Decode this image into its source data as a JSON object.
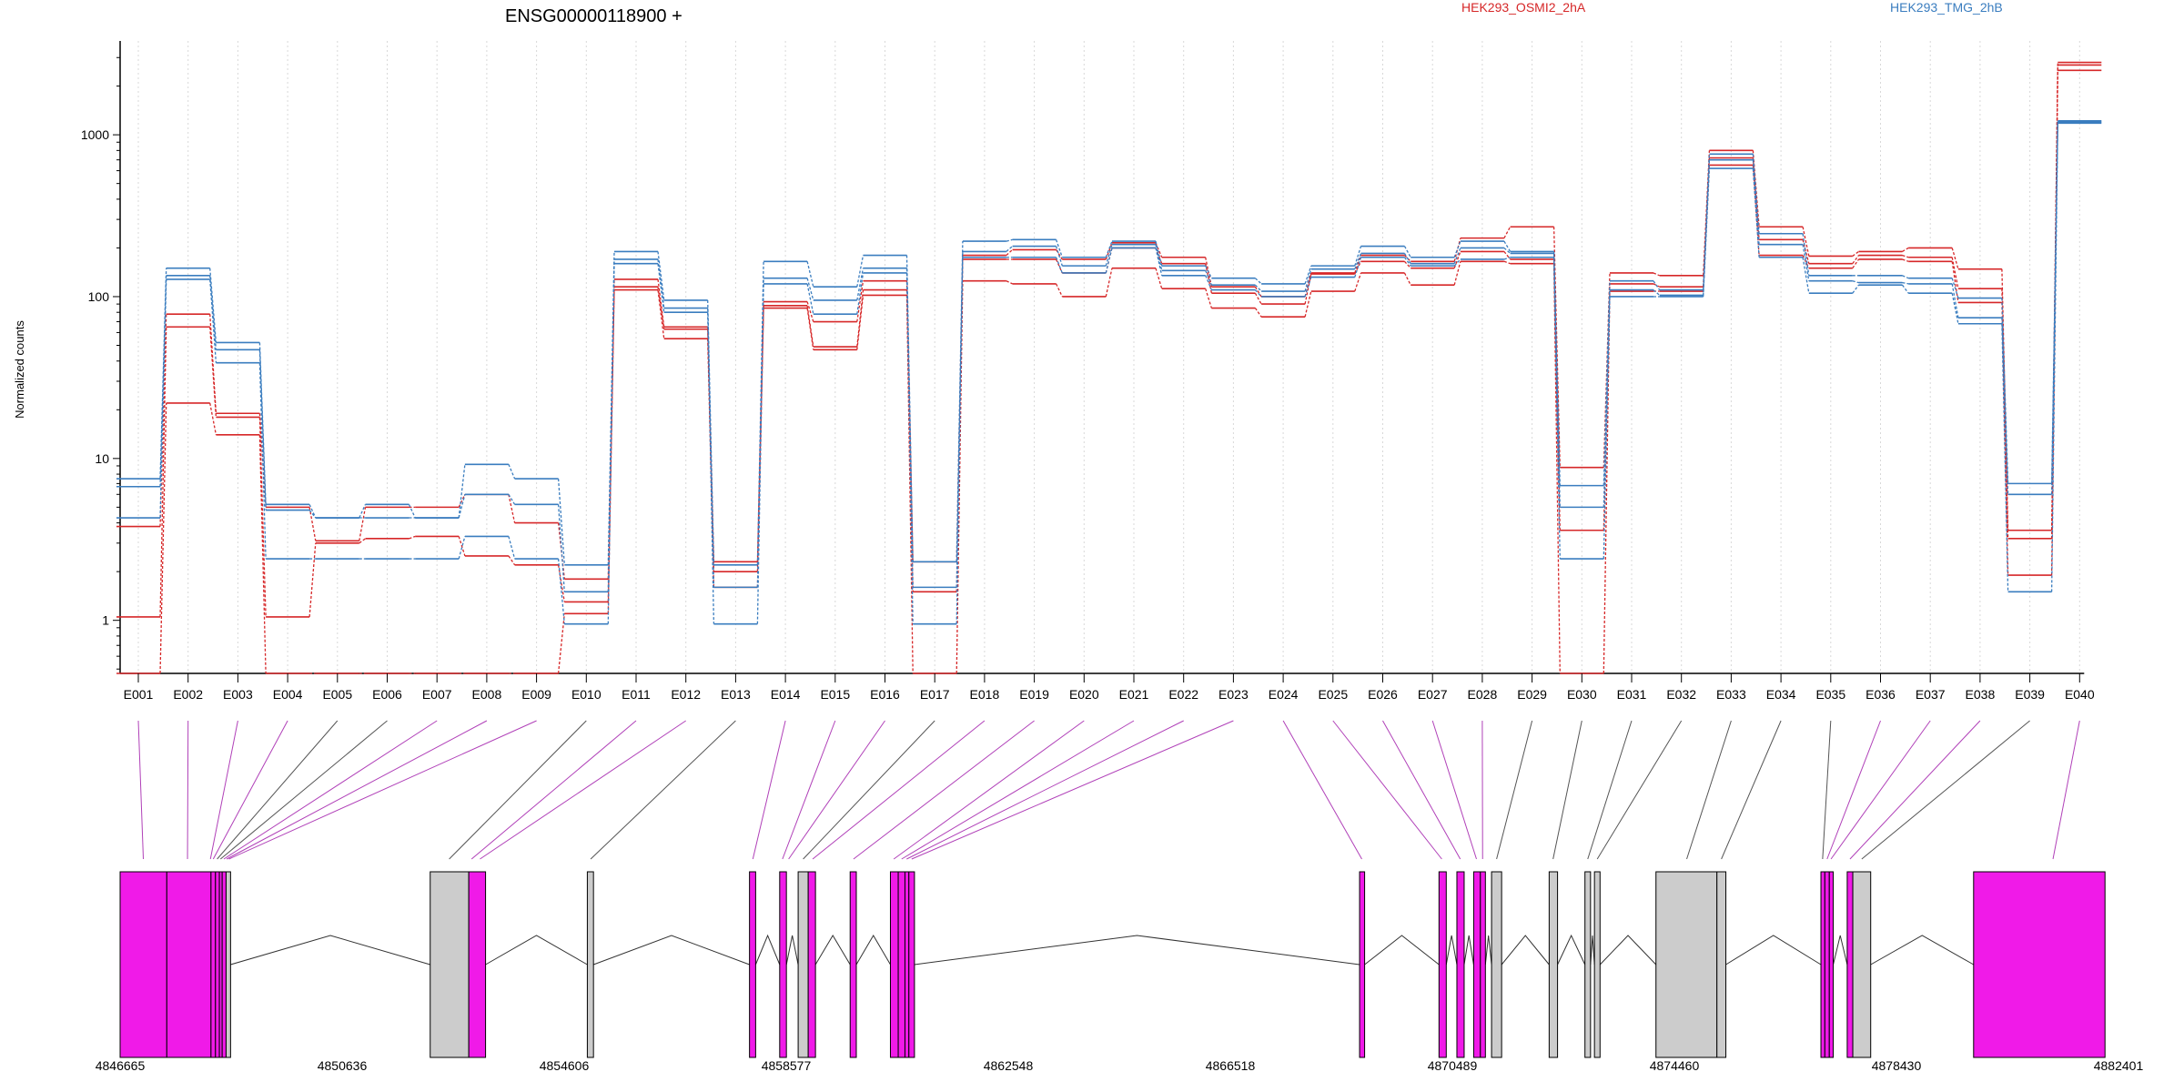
{
  "chart_data": {
    "type": "line",
    "title": "ENSG00000118900 +",
    "ylabel": "Normalized counts",
    "yscale": "log",
    "ylim": [
      0.47,
      3800
    ],
    "y_tick_values": [
      1,
      10,
      100,
      1000
    ],
    "y_tick_labels": [
      "1",
      "10",
      "100",
      "1000"
    ],
    "legend": [
      "HEK293_OSMI2_2hA",
      "HEK293_TMG_2hB"
    ],
    "legend_placement": "top",
    "grid": "vertical dotted",
    "categories": [
      "E001",
      "E002",
      "E003",
      "E004",
      "E005",
      "E006",
      "E007",
      "E008",
      "E009",
      "E010",
      "E011",
      "E012",
      "E013",
      "E014",
      "E015",
      "E016",
      "E017",
      "E018",
      "E019",
      "E020",
      "E021",
      "E022",
      "E023",
      "E024",
      "E025",
      "E026",
      "E027",
      "E028",
      "E029",
      "E030",
      "E031",
      "E032",
      "E033",
      "E034",
      "E035",
      "E036",
      "E037",
      "E038",
      "E039",
      "E040"
    ],
    "series": [
      {
        "name": "HEK293_OSMI2_2hA",
        "color": "#d62728",
        "values": [
          0.47,
          22,
          14,
          0.47,
          0.47,
          0.47,
          0.47,
          0.47,
          0.47,
          1.1,
          110,
          55,
          1.6,
          85,
          47,
          102,
          0.47,
          125,
          120,
          100,
          150,
          112,
          85,
          75,
          108,
          140,
          118,
          165,
          160,
          0.47,
          108,
          108,
          650,
          180,
          150,
          170,
          165,
          92,
          1.9,
          2500
        ]
      },
      {
        "name": "HEK293_OSMI2_2hA",
        "color": "#d62728",
        "values": [
          1.05,
          65,
          18,
          1.05,
          3.0,
          3.2,
          3.3,
          2.5,
          2.2,
          1.3,
          115,
          63,
          2.0,
          88,
          49,
          110,
          1.5,
          170,
          170,
          140,
          200,
          160,
          105,
          90,
          138,
          165,
          150,
          190,
          170,
          3.6,
          120,
          115,
          720,
          225,
          160,
          180,
          175,
          112,
          3.2,
          2700
        ]
      },
      {
        "name": "HEK293_OSMI2_2hA",
        "color": "#d62728",
        "values": [
          3.8,
          78,
          19,
          5.0,
          3.1,
          5.0,
          5.0,
          6.0,
          4.0,
          1.8,
          128,
          65,
          2.3,
          93,
          70,
          125,
          2.3,
          180,
          195,
          170,
          215,
          175,
          115,
          100,
          140,
          180,
          165,
          230,
          270,
          8.8,
          140,
          135,
          800,
          270,
          178,
          190,
          200,
          148,
          3.6,
          2800
        ]
      },
      {
        "name": "HEK293_TMG_2hB",
        "color": "#3a7dbf",
        "values": [
          7.5,
          150,
          52,
          5.2,
          4.3,
          5.2,
          4.3,
          9.2,
          7.5,
          2.2,
          190,
          95,
          2.2,
          165,
          115,
          180,
          2.3,
          220,
          225,
          175,
          220,
          155,
          130,
          120,
          155,
          205,
          175,
          220,
          190,
          6.8,
          125,
          110,
          760,
          245,
          135,
          135,
          130,
          98,
          7.0,
          1220
        ]
      },
      {
        "name": "HEK293_TMG_2hB",
        "color": "#3a7dbf",
        "values": [
          6.7,
          135,
          47,
          4.8,
          4.3,
          4.3,
          4.3,
          6.0,
          5.2,
          1.5,
          170,
          85,
          1.6,
          130,
          95,
          150,
          1.6,
          190,
          205,
          155,
          210,
          145,
          118,
          108,
          148,
          185,
          160,
          200,
          185,
          5.0,
          110,
          102,
          700,
          210,
          125,
          122,
          120,
          74,
          6.0,
          1200
        ]
      },
      {
        "name": "HEK293_TMG_2hB",
        "color": "#3a7dbf",
        "values": [
          4.3,
          128,
          39,
          2.4,
          2.4,
          2.4,
          2.4,
          3.3,
          2.4,
          0.95,
          160,
          80,
          0.95,
          120,
          78,
          140,
          0.95,
          175,
          175,
          140,
          200,
          135,
          110,
          100,
          132,
          175,
          155,
          170,
          175,
          2.4,
          100,
          100,
          620,
          175,
          105,
          118,
          105,
          68,
          1.5,
          1180
        ]
      }
    ],
    "gene_model": {
      "coordinate_ticks": [
        "4846665",
        "4850636",
        "4854606",
        "4858577",
        "4862548",
        "4866518",
        "4870489",
        "4874460",
        "4878430",
        "4882401"
      ],
      "coord_min": 4846665,
      "coord_max": 4882401,
      "highlight_color": "#f01ae8",
      "gray_color": "#cccccc",
      "blocks": [
        {
          "start": 4846665,
          "end": 4847500,
          "kind": "highlight"
        },
        {
          "start": 4847500,
          "end": 4848290,
          "kind": "highlight"
        },
        {
          "start": 4848290,
          "end": 4848370,
          "kind": "highlight"
        },
        {
          "start": 4848370,
          "end": 4848440,
          "kind": "highlight"
        },
        {
          "start": 4848440,
          "end": 4848490,
          "kind": "highlight"
        },
        {
          "start": 4848490,
          "end": 4848560,
          "kind": "highlight"
        },
        {
          "start": 4848560,
          "end": 4848640,
          "kind": "gray"
        },
        {
          "start": 4852210,
          "end": 4852900,
          "kind": "gray"
        },
        {
          "start": 4852900,
          "end": 4853200,
          "kind": "highlight"
        },
        {
          "start": 4855020,
          "end": 4855130,
          "kind": "gray"
        },
        {
          "start": 4857920,
          "end": 4858030,
          "kind": "highlight"
        },
        {
          "start": 4858460,
          "end": 4858580,
          "kind": "highlight"
        },
        {
          "start": 4858790,
          "end": 4858970,
          "kind": "gray"
        },
        {
          "start": 4858970,
          "end": 4859100,
          "kind": "highlight"
        },
        {
          "start": 4859720,
          "end": 4859830,
          "kind": "highlight"
        },
        {
          "start": 4860440,
          "end": 4860580,
          "kind": "highlight"
        },
        {
          "start": 4860580,
          "end": 4860700,
          "kind": "highlight"
        },
        {
          "start": 4860700,
          "end": 4860770,
          "kind": "highlight"
        },
        {
          "start": 4860770,
          "end": 4860870,
          "kind": "highlight"
        },
        {
          "start": 4868830,
          "end": 4868920,
          "kind": "highlight"
        },
        {
          "start": 4870250,
          "end": 4870380,
          "kind": "highlight"
        },
        {
          "start": 4870570,
          "end": 4870700,
          "kind": "highlight"
        },
        {
          "start": 4870870,
          "end": 4870990,
          "kind": "highlight"
        },
        {
          "start": 4870990,
          "end": 4871080,
          "kind": "highlight"
        },
        {
          "start": 4871190,
          "end": 4871370,
          "kind": "gray"
        },
        {
          "start": 4872220,
          "end": 4872370,
          "kind": "gray"
        },
        {
          "start": 4872860,
          "end": 4872960,
          "kind": "gray"
        },
        {
          "start": 4873030,
          "end": 4873130,
          "kind": "gray"
        },
        {
          "start": 4874130,
          "end": 4875220,
          "kind": "gray"
        },
        {
          "start": 4875220,
          "end": 4875380,
          "kind": "gray"
        },
        {
          "start": 4877080,
          "end": 4877150,
          "kind": "highlight"
        },
        {
          "start": 4877150,
          "end": 4877230,
          "kind": "highlight"
        },
        {
          "start": 4877230,
          "end": 4877300,
          "kind": "highlight"
        },
        {
          "start": 4877550,
          "end": 4877650,
          "kind": "highlight"
        },
        {
          "start": 4877650,
          "end": 4877970,
          "kind": "gray"
        },
        {
          "start": 4879810,
          "end": 4882160,
          "kind": "highlight"
        }
      ],
      "exon_links": [
        {
          "exon": "E001",
          "pos": 4847080,
          "kind": "highlight"
        },
        {
          "exon": "E002",
          "pos": 4847870,
          "kind": "highlight"
        },
        {
          "exon": "E003",
          "pos": 4848280,
          "kind": "highlight"
        },
        {
          "exon": "E004",
          "pos": 4848330,
          "kind": "highlight"
        },
        {
          "exon": "E005",
          "pos": 4848400,
          "kind": "gray"
        },
        {
          "exon": "E006",
          "pos": 4848460,
          "kind": "gray"
        },
        {
          "exon": "E007",
          "pos": 4848520,
          "kind": "highlight"
        },
        {
          "exon": "E008",
          "pos": 4848570,
          "kind": "highlight"
        },
        {
          "exon": "E009",
          "pos": 4848610,
          "kind": "highlight"
        },
        {
          "exon": "E010",
          "pos": 4852550,
          "kind": "gray"
        },
        {
          "exon": "E011",
          "pos": 4852950,
          "kind": "highlight"
        },
        {
          "exon": "E012",
          "pos": 4853100,
          "kind": "highlight"
        },
        {
          "exon": "E013",
          "pos": 4855080,
          "kind": "gray"
        },
        {
          "exon": "E014",
          "pos": 4857980,
          "kind": "highlight"
        },
        {
          "exon": "E015",
          "pos": 4858510,
          "kind": "highlight"
        },
        {
          "exon": "E016",
          "pos": 4858620,
          "kind": "highlight"
        },
        {
          "exon": "E017",
          "pos": 4858880,
          "kind": "gray"
        },
        {
          "exon": "E018",
          "pos": 4859050,
          "kind": "highlight"
        },
        {
          "exon": "E019",
          "pos": 4859780,
          "kind": "highlight"
        },
        {
          "exon": "E020",
          "pos": 4860500,
          "kind": "highlight"
        },
        {
          "exon": "E021",
          "pos": 4860640,
          "kind": "highlight"
        },
        {
          "exon": "E022",
          "pos": 4860730,
          "kind": "highlight"
        },
        {
          "exon": "E023",
          "pos": 4860820,
          "kind": "highlight"
        },
        {
          "exon": "E024",
          "pos": 4868870,
          "kind": "highlight"
        },
        {
          "exon": "E025",
          "pos": 4870300,
          "kind": "highlight"
        },
        {
          "exon": "E026",
          "pos": 4870630,
          "kind": "highlight"
        },
        {
          "exon": "E027",
          "pos": 4870920,
          "kind": "highlight"
        },
        {
          "exon": "E028",
          "pos": 4871030,
          "kind": "highlight"
        },
        {
          "exon": "E029",
          "pos": 4871280,
          "kind": "gray"
        },
        {
          "exon": "E030",
          "pos": 4872290,
          "kind": "gray"
        },
        {
          "exon": "E031",
          "pos": 4872910,
          "kind": "gray"
        },
        {
          "exon": "E032",
          "pos": 4873080,
          "kind": "gray"
        },
        {
          "exon": "E033",
          "pos": 4874680,
          "kind": "gray"
        },
        {
          "exon": "E034",
          "pos": 4875300,
          "kind": "gray"
        },
        {
          "exon": "E035",
          "pos": 4877110,
          "kind": "gray"
        },
        {
          "exon": "E036",
          "pos": 4877190,
          "kind": "highlight"
        },
        {
          "exon": "E037",
          "pos": 4877260,
          "kind": "highlight"
        },
        {
          "exon": "E038",
          "pos": 4877600,
          "kind": "highlight"
        },
        {
          "exon": "E039",
          "pos": 4877810,
          "kind": "gray"
        },
        {
          "exon": "E040",
          "pos": 4881230,
          "kind": "highlight"
        }
      ]
    }
  }
}
